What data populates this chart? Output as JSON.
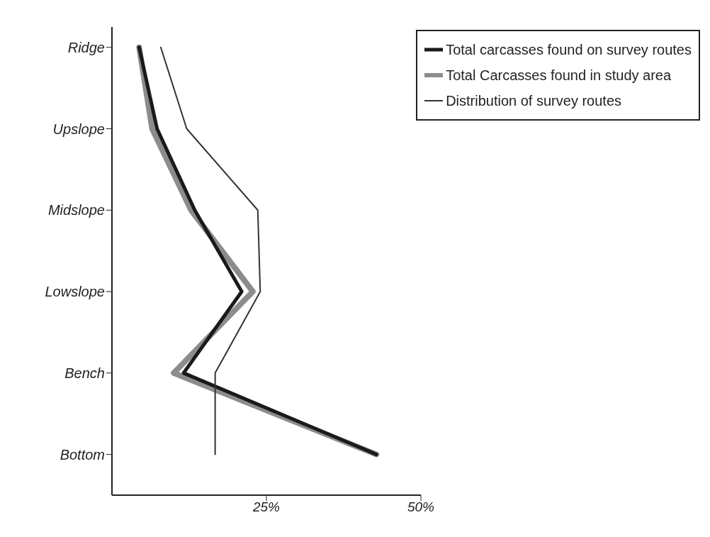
{
  "chart_data": {
    "type": "line",
    "orientation": "horizontal",
    "categories": [
      "Ridge",
      "Upslope",
      "Midslope",
      "Lowslope",
      "Bench",
      "Bottom"
    ],
    "series": [
      {
        "name": "Total carcasses found on survey routes",
        "color": "#1a1a1a",
        "values": [
          4.4,
          7.3,
          13.4,
          21,
          11.6,
          42.8
        ]
      },
      {
        "name": "Total Carcasses found in study area",
        "color": "#8c8c8c",
        "values": [
          4.4,
          6.5,
          12.8,
          22.8,
          10,
          42.8
        ]
      },
      {
        "name": "Distribution of survey routes",
        "color": "#333333",
        "values": [
          7.9,
          12.1,
          23.6,
          24,
          16.7,
          16.7
        ]
      }
    ],
    "xlim": [
      0,
      50
    ],
    "xticks": [
      {
        "value": 25,
        "label": "25%"
      },
      {
        "value": 50,
        "label": "50%"
      }
    ],
    "legend": "top right",
    "marker": "none",
    "line_style": "solid"
  }
}
